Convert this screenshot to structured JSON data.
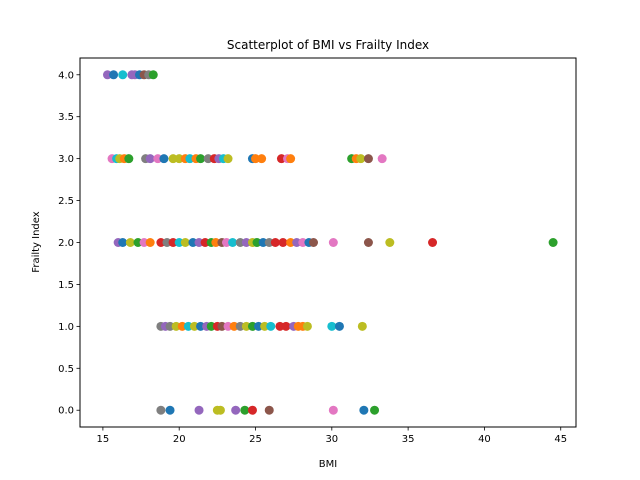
{
  "chart_data": {
    "type": "scatter",
    "title": "Scatterplot of BMI vs Frailty Index",
    "xlabel": "BMI",
    "ylabel": "Frailty Index",
    "xlim": [
      13.5,
      46.0
    ],
    "ylim": [
      -0.2,
      4.2
    ],
    "xticks": [
      15,
      20,
      25,
      30,
      35,
      40,
      45
    ],
    "yticks": [
      0.0,
      0.5,
      1.0,
      1.5,
      2.0,
      2.5,
      3.0,
      3.5,
      4.0
    ],
    "xtick_labels": [
      "15",
      "20",
      "25",
      "30",
      "35",
      "40",
      "45"
    ],
    "ytick_labels": [
      "0.0",
      "0.5",
      "1.0",
      "1.5",
      "2.0",
      "2.5",
      "3.0",
      "3.5",
      "4.0"
    ],
    "grid": false,
    "legend": "none",
    "palette": [
      "#1f77b4",
      "#ff7f0e",
      "#2ca02c",
      "#d62728",
      "#9467bd",
      "#8c564b",
      "#e377c2",
      "#7f7f7f",
      "#bcbd22",
      "#17becf"
    ],
    "points": [
      {
        "x": 15.3,
        "y": 4.0,
        "c": 4
      },
      {
        "x": 15.7,
        "y": 4.0,
        "c": 0
      },
      {
        "x": 16.3,
        "y": 4.0,
        "c": 9
      },
      {
        "x": 16.9,
        "y": 4.0,
        "c": 4
      },
      {
        "x": 17.1,
        "y": 4.0,
        "c": 4
      },
      {
        "x": 17.4,
        "y": 4.0,
        "c": 0
      },
      {
        "x": 17.7,
        "y": 4.0,
        "c": 5
      },
      {
        "x": 18.0,
        "y": 4.0,
        "c": 7
      },
      {
        "x": 18.3,
        "y": 4.0,
        "c": 2
      },
      {
        "x": 15.6,
        "y": 3.0,
        "c": 6
      },
      {
        "x": 15.9,
        "y": 3.0,
        "c": 9
      },
      {
        "x": 16.1,
        "y": 3.0,
        "c": 8
      },
      {
        "x": 16.4,
        "y": 3.0,
        "c": 1
      },
      {
        "x": 16.7,
        "y": 3.0,
        "c": 2
      },
      {
        "x": 17.8,
        "y": 3.0,
        "c": 7
      },
      {
        "x": 18.1,
        "y": 3.0,
        "c": 4
      },
      {
        "x": 18.6,
        "y": 3.0,
        "c": 6
      },
      {
        "x": 19.0,
        "y": 3.0,
        "c": 0
      },
      {
        "x": 19.6,
        "y": 3.0,
        "c": 8
      },
      {
        "x": 20.0,
        "y": 3.0,
        "c": 8
      },
      {
        "x": 20.4,
        "y": 3.0,
        "c": 1
      },
      {
        "x": 20.7,
        "y": 3.0,
        "c": 9
      },
      {
        "x": 21.1,
        "y": 3.0,
        "c": 1
      },
      {
        "x": 21.4,
        "y": 3.0,
        "c": 2
      },
      {
        "x": 21.9,
        "y": 3.0,
        "c": 7
      },
      {
        "x": 22.3,
        "y": 3.0,
        "c": 3
      },
      {
        "x": 22.6,
        "y": 3.0,
        "c": 4
      },
      {
        "x": 22.9,
        "y": 3.0,
        "c": 9
      },
      {
        "x": 23.2,
        "y": 3.0,
        "c": 8
      },
      {
        "x": 24.8,
        "y": 3.0,
        "c": 0
      },
      {
        "x": 25.0,
        "y": 3.0,
        "c": 1
      },
      {
        "x": 25.4,
        "y": 3.0,
        "c": 1
      },
      {
        "x": 26.7,
        "y": 3.0,
        "c": 3
      },
      {
        "x": 27.1,
        "y": 3.0,
        "c": 6
      },
      {
        "x": 27.3,
        "y": 3.0,
        "c": 1
      },
      {
        "x": 31.3,
        "y": 3.0,
        "c": 2
      },
      {
        "x": 31.6,
        "y": 3.0,
        "c": 1
      },
      {
        "x": 31.9,
        "y": 3.0,
        "c": 8
      },
      {
        "x": 32.4,
        "y": 3.0,
        "c": 5
      },
      {
        "x": 33.3,
        "y": 3.0,
        "c": 6
      },
      {
        "x": 16.0,
        "y": 2.0,
        "c": 4
      },
      {
        "x": 16.3,
        "y": 2.0,
        "c": 0
      },
      {
        "x": 16.8,
        "y": 2.0,
        "c": 8
      },
      {
        "x": 17.3,
        "y": 2.0,
        "c": 2
      },
      {
        "x": 17.7,
        "y": 2.0,
        "c": 6
      },
      {
        "x": 18.1,
        "y": 2.0,
        "c": 1
      },
      {
        "x": 18.8,
        "y": 2.0,
        "c": 3
      },
      {
        "x": 19.2,
        "y": 2.0,
        "c": 7
      },
      {
        "x": 19.6,
        "y": 2.0,
        "c": 3
      },
      {
        "x": 20.0,
        "y": 2.0,
        "c": 9
      },
      {
        "x": 20.4,
        "y": 2.0,
        "c": 8
      },
      {
        "x": 20.9,
        "y": 2.0,
        "c": 0
      },
      {
        "x": 21.3,
        "y": 2.0,
        "c": 4
      },
      {
        "x": 21.7,
        "y": 2.0,
        "c": 3
      },
      {
        "x": 22.1,
        "y": 2.0,
        "c": 2
      },
      {
        "x": 22.4,
        "y": 2.0,
        "c": 1
      },
      {
        "x": 22.8,
        "y": 2.0,
        "c": 5
      },
      {
        "x": 23.1,
        "y": 2.0,
        "c": 6
      },
      {
        "x": 23.5,
        "y": 2.0,
        "c": 9
      },
      {
        "x": 24.0,
        "y": 2.0,
        "c": 7
      },
      {
        "x": 24.4,
        "y": 2.0,
        "c": 4
      },
      {
        "x": 24.8,
        "y": 2.0,
        "c": 8
      },
      {
        "x": 25.1,
        "y": 2.0,
        "c": 2
      },
      {
        "x": 25.5,
        "y": 2.0,
        "c": 0
      },
      {
        "x": 25.9,
        "y": 2.0,
        "c": 7
      },
      {
        "x": 26.3,
        "y": 2.0,
        "c": 3
      },
      {
        "x": 26.8,
        "y": 2.0,
        "c": 3
      },
      {
        "x": 27.3,
        "y": 2.0,
        "c": 1
      },
      {
        "x": 27.7,
        "y": 2.0,
        "c": 4
      },
      {
        "x": 28.1,
        "y": 2.0,
        "c": 6
      },
      {
        "x": 28.5,
        "y": 2.0,
        "c": 0
      },
      {
        "x": 28.8,
        "y": 2.0,
        "c": 5
      },
      {
        "x": 30.1,
        "y": 2.0,
        "c": 6
      },
      {
        "x": 32.4,
        "y": 2.0,
        "c": 5
      },
      {
        "x": 33.8,
        "y": 2.0,
        "c": 8
      },
      {
        "x": 36.6,
        "y": 2.0,
        "c": 3
      },
      {
        "x": 44.5,
        "y": 2.0,
        "c": 2
      },
      {
        "x": 18.8,
        "y": 1.0,
        "c": 7
      },
      {
        "x": 19.1,
        "y": 1.0,
        "c": 4
      },
      {
        "x": 19.4,
        "y": 1.0,
        "c": 7
      },
      {
        "x": 19.8,
        "y": 1.0,
        "c": 8
      },
      {
        "x": 20.2,
        "y": 1.0,
        "c": 1
      },
      {
        "x": 20.6,
        "y": 1.0,
        "c": 9
      },
      {
        "x": 21.0,
        "y": 1.0,
        "c": 8
      },
      {
        "x": 21.4,
        "y": 1.0,
        "c": 0
      },
      {
        "x": 21.8,
        "y": 1.0,
        "c": 4
      },
      {
        "x": 22.1,
        "y": 1.0,
        "c": 2
      },
      {
        "x": 22.5,
        "y": 1.0,
        "c": 3
      },
      {
        "x": 22.8,
        "y": 1.0,
        "c": 5
      },
      {
        "x": 23.2,
        "y": 1.0,
        "c": 6
      },
      {
        "x": 23.6,
        "y": 1.0,
        "c": 1
      },
      {
        "x": 24.0,
        "y": 1.0,
        "c": 7
      },
      {
        "x": 24.4,
        "y": 1.0,
        "c": 8
      },
      {
        "x": 24.8,
        "y": 1.0,
        "c": 2
      },
      {
        "x": 25.2,
        "y": 1.0,
        "c": 0
      },
      {
        "x": 25.6,
        "y": 1.0,
        "c": 8
      },
      {
        "x": 26.0,
        "y": 1.0,
        "c": 9
      },
      {
        "x": 26.6,
        "y": 1.0,
        "c": 3
      },
      {
        "x": 27.0,
        "y": 1.0,
        "c": 3
      },
      {
        "x": 27.5,
        "y": 1.0,
        "c": 4
      },
      {
        "x": 27.8,
        "y": 1.0,
        "c": 1
      },
      {
        "x": 28.1,
        "y": 1.0,
        "c": 1
      },
      {
        "x": 28.4,
        "y": 1.0,
        "c": 8
      },
      {
        "x": 30.0,
        "y": 1.0,
        "c": 9
      },
      {
        "x": 30.5,
        "y": 1.0,
        "c": 0
      },
      {
        "x": 32.0,
        "y": 1.0,
        "c": 8
      },
      {
        "x": 18.8,
        "y": 0.0,
        "c": 7
      },
      {
        "x": 19.4,
        "y": 0.0,
        "c": 0
      },
      {
        "x": 21.3,
        "y": 0.0,
        "c": 4
      },
      {
        "x": 22.5,
        "y": 0.0,
        "c": 8
      },
      {
        "x": 22.7,
        "y": 0.0,
        "c": 8
      },
      {
        "x": 23.7,
        "y": 0.0,
        "c": 4
      },
      {
        "x": 24.3,
        "y": 0.0,
        "c": 2
      },
      {
        "x": 24.8,
        "y": 0.0,
        "c": 3
      },
      {
        "x": 25.9,
        "y": 0.0,
        "c": 5
      },
      {
        "x": 30.1,
        "y": 0.0,
        "c": 6
      },
      {
        "x": 32.1,
        "y": 0.0,
        "c": 0
      },
      {
        "x": 32.8,
        "y": 0.0,
        "c": 2
      }
    ]
  }
}
